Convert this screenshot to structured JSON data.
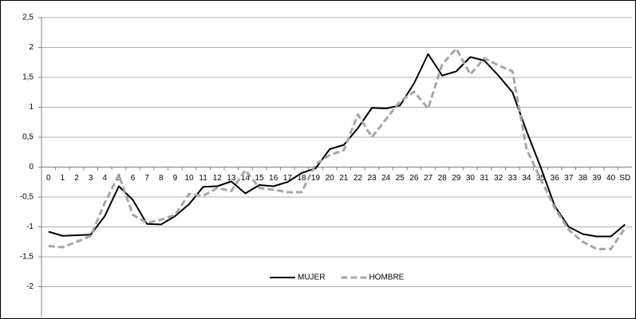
{
  "chart_data": {
    "type": "line",
    "categories": [
      "0",
      "1",
      "2",
      "3",
      "4",
      "5",
      "6",
      "7",
      "8",
      "9",
      "10",
      "11",
      "12",
      "13",
      "14",
      "15",
      "16",
      "17",
      "18",
      "19",
      "20",
      "21",
      "22",
      "23",
      "24",
      "25",
      "26",
      "27",
      "28",
      "29",
      "30",
      "31",
      "32",
      "33",
      "34",
      "35",
      "36",
      "37",
      "38",
      "39",
      "40",
      "SD"
    ],
    "series": [
      {
        "name": "MUJER",
        "color": "#000000",
        "dash": false,
        "values": [
          -1.08,
          -1.15,
          -1.14,
          -1.13,
          -0.82,
          -0.32,
          -0.55,
          -0.95,
          -0.96,
          -0.82,
          -0.62,
          -0.33,
          -0.32,
          -0.24,
          -0.44,
          -0.3,
          -0.32,
          -0.25,
          -0.1,
          -0.02,
          0.3,
          0.37,
          0.65,
          0.99,
          0.98,
          1.03,
          1.4,
          1.89,
          1.53,
          1.6,
          1.84,
          1.78,
          1.53,
          1.25,
          0.6,
          0.0,
          -0.65,
          -1.0,
          -1.12,
          -1.16,
          -1.16,
          -0.96
        ]
      },
      {
        "name": "HOMBRE",
        "color": "#a6a6a6",
        "dash": true,
        "values": [
          -1.32,
          -1.34,
          -1.25,
          -1.15,
          -0.6,
          -0.13,
          -0.8,
          -0.93,
          -0.88,
          -0.8,
          -0.45,
          -0.48,
          -0.35,
          -0.4,
          -0.05,
          -0.35,
          -0.38,
          -0.42,
          -0.42,
          0.05,
          0.2,
          0.28,
          0.88,
          0.5,
          0.8,
          1.1,
          1.26,
          0.98,
          1.72,
          1.98,
          1.55,
          1.82,
          1.7,
          1.6,
          0.3,
          -0.2,
          -0.68,
          -1.05,
          -1.25,
          -1.37,
          -1.37,
          -1.02
        ]
      }
    ],
    "ylim": [
      -2.5,
      2.5
    ],
    "yticks": [
      {
        "value": -2,
        "label": "-2"
      },
      {
        "value": -1.5,
        "label": "-1,5"
      },
      {
        "value": -1,
        "label": "-1"
      },
      {
        "value": -0.5,
        "label": "-0,5"
      },
      {
        "value": 0,
        "label": "0"
      },
      {
        "value": 0.5,
        "label": "0,5"
      },
      {
        "value": 1,
        "label": "1"
      },
      {
        "value": 1.5,
        "label": "1,5"
      },
      {
        "value": 2,
        "label": "2"
      },
      {
        "value": 2.5,
        "label": "2,5"
      }
    ],
    "grid": true,
    "legend": "bottom"
  }
}
